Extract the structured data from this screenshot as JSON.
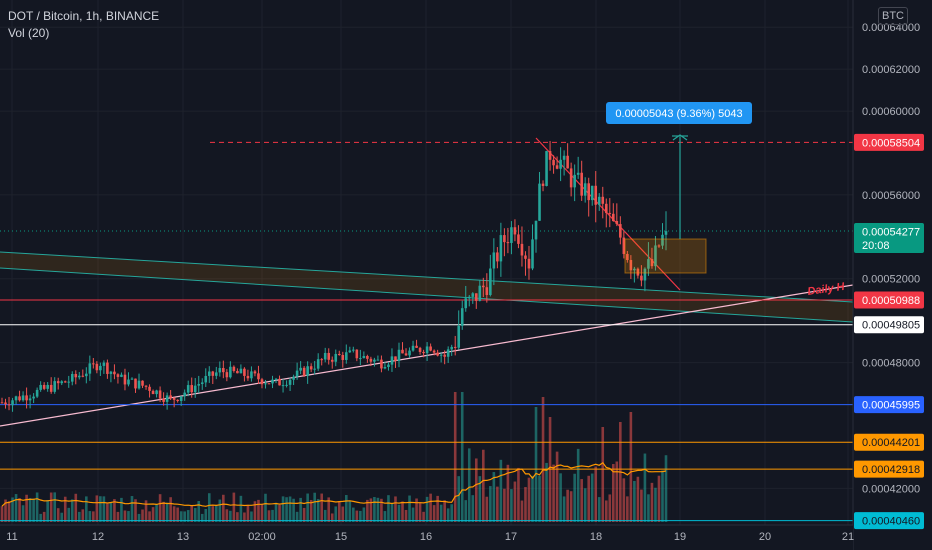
{
  "legend": {
    "symbol": "DOT / Bitcoin, 1h, BINANCE",
    "volume": "Vol (20)"
  },
  "currency_badge": "BTC",
  "chart_data": {
    "type": "candlestick",
    "ylim": [
      0.0004025,
      0.000653
    ],
    "y_ticks": [
      {
        "label": "0.00064000",
        "value": 0.00064
      },
      {
        "label": "0.00062000",
        "value": 0.00062
      },
      {
        "label": "0.00060000",
        "value": 0.0006
      },
      {
        "label": "0.00056000",
        "value": 0.00056
      },
      {
        "label": "0.00052000",
        "value": 0.00052
      },
      {
        "label": "0.00048000",
        "value": 0.00048
      },
      {
        "label": "0.00042000",
        "value": 0.00042
      }
    ],
    "x_ticks": [
      "11",
      "12",
      "13",
      "02:00",
      "15",
      "16",
      "17",
      "18",
      "19",
      "20",
      "21"
    ],
    "price_tags": [
      {
        "label": "0.00058504",
        "value": 0.00058504,
        "bg": "#f23645",
        "fg": "#ffffff",
        "line": "dashed"
      },
      {
        "label": "0.00054277",
        "sub": "20:08",
        "value": 0.00054277,
        "bg": "#089981",
        "fg": "#ffffff",
        "line": "dotted"
      },
      {
        "label": "0.00050988",
        "value": 0.00050988,
        "bg": "#f23645",
        "fg": "#ffffff",
        "line": "solid"
      },
      {
        "label": "0.00049805",
        "value": 0.00049805,
        "bg": "#ffffff",
        "fg": "#131722",
        "line": "solid"
      },
      {
        "label": "0.00045995",
        "value": 0.00045995,
        "bg": "#2962ff",
        "fg": "#ffffff",
        "line": "solid"
      },
      {
        "label": "0.00044201",
        "value": 0.00044201,
        "bg": "#ff9800",
        "fg": "#131722",
        "line": "solid"
      },
      {
        "label": "0.00042918",
        "value": 0.00042918,
        "bg": "#ff9800",
        "fg": "#131722",
        "line": "solid"
      },
      {
        "label": "0.00040460",
        "value": 0.0004046,
        "bg": "#00bcd4",
        "fg": "#131722",
        "line": "solid"
      }
    ],
    "measure_label": "0.00005043 (9.36%) 5043",
    "annotation": "Daily H",
    "up_color": "#26a69a",
    "down_color": "#ef5350"
  }
}
